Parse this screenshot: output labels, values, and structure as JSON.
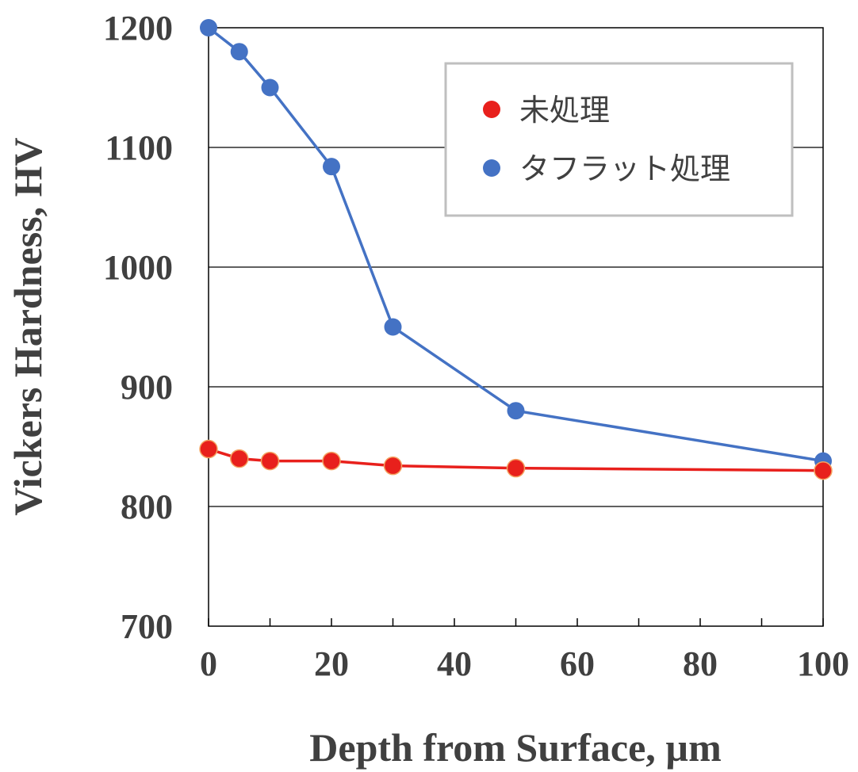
{
  "chart_data": {
    "type": "line",
    "xlabel": "Depth from Surface, µm",
    "ylabel": "Vickers Hardness, HV",
    "xlim": [
      0,
      100
    ],
    "ylim": [
      700,
      1200
    ],
    "x_ticks": [
      "0",
      "20",
      "40",
      "60",
      "80",
      "100"
    ],
    "y_ticks": [
      "700",
      "800",
      "900",
      "1000",
      "1100",
      "1200"
    ],
    "grid": "horizontal",
    "legend_position": "top-right",
    "series": [
      {
        "name": "未処理",
        "color": "#e8201c",
        "x": [
          0,
          5,
          10,
          20,
          30,
          50,
          100
        ],
        "y": [
          848,
          840,
          838,
          838,
          834,
          832,
          830
        ]
      },
      {
        "name": "タフラット処理",
        "color": "#4472c4",
        "x": [
          0,
          5,
          10,
          20,
          30,
          50,
          100
        ],
        "y": [
          1200,
          1180,
          1150,
          1084,
          950,
          880,
          838
        ]
      }
    ]
  }
}
